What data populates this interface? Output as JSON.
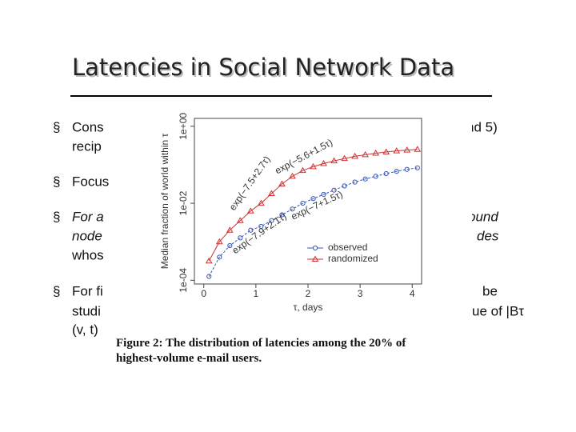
{
  "slide": {
    "title": "Latencies in Social Network Data",
    "bullets": [
      {
        "lines": [
          {
            "left": "Cons",
            "right": "nd 5)"
          },
          {
            "left": "recip",
            "right": null
          }
        ]
      },
      {
        "lines": [
          {
            "left": "Focus",
            "right": null
          }
        ]
      },
      {
        "lines": [
          {
            "left": "For a",
            "right": "ound"
          },
          {
            "left": "node",
            "right": "des"
          },
          {
            "left": "whos",
            "right": null
          }
        ]
      },
      {
        "lines": [
          {
            "left": "For fi",
            "right": "be"
          },
          {
            "left": "studi",
            "right": "ue of |Bτ"
          },
          {
            "left": "(v, t)",
            "right": null
          }
        ]
      }
    ]
  },
  "chart_data": {
    "type": "scatter",
    "log_y": true,
    "ylabel": "Median fraction of world within τ",
    "xlabel": "τ, days",
    "caption": [
      "Figure 2:  The distribution of latencies among the 20% of",
      "highest-volume e-mail users."
    ],
    "annotations": [
      "exp(−5.6+1.5τ)",
      "exp(−7.5+2.7τ)",
      "exp(−7+1.5τ)",
      "exp(−7.9+2.1τ)"
    ],
    "legend": "bottom-right",
    "x": [
      0.1,
      0.3,
      0.5,
      0.7,
      0.9,
      1.1,
      1.3,
      1.5,
      1.7,
      1.9,
      2.1,
      2.3,
      2.5,
      2.7,
      2.9,
      3.1,
      3.3,
      3.5,
      3.7,
      3.9,
      4.1
    ],
    "series": [
      {
        "name": "observed",
        "color": "#3355bb",
        "marker": "circle",
        "values": [
          0.000126,
          0.000398,
          0.000794,
          0.00126,
          0.002,
          0.00251,
          0.00355,
          0.00501,
          0.00708,
          0.01,
          0.0132,
          0.017,
          0.0219,
          0.0282,
          0.0355,
          0.0427,
          0.0501,
          0.0589,
          0.0676,
          0.0759,
          0.0832
        ]
      },
      {
        "name": "randomized",
        "color": "#d03030",
        "marker": "triangle",
        "values": [
          0.000316,
          0.001,
          0.002,
          0.00355,
          0.00631,
          0.01,
          0.0178,
          0.0316,
          0.0501,
          0.0708,
          0.0891,
          0.107,
          0.126,
          0.145,
          0.166,
          0.182,
          0.2,
          0.214,
          0.229,
          0.24,
          0.251
        ]
      }
    ],
    "xlim": [
      -0.18,
      4.18
    ],
    "ylim": [
      8e-05,
      1.6
    ],
    "xticks": [
      0,
      1,
      2,
      3,
      4
    ],
    "yticks": [
      {
        "value": 0.0001,
        "label": "1e-04"
      },
      {
        "value": 0.01,
        "label": "1e-02"
      },
      {
        "value": 1,
        "label": "1e+00"
      }
    ]
  }
}
